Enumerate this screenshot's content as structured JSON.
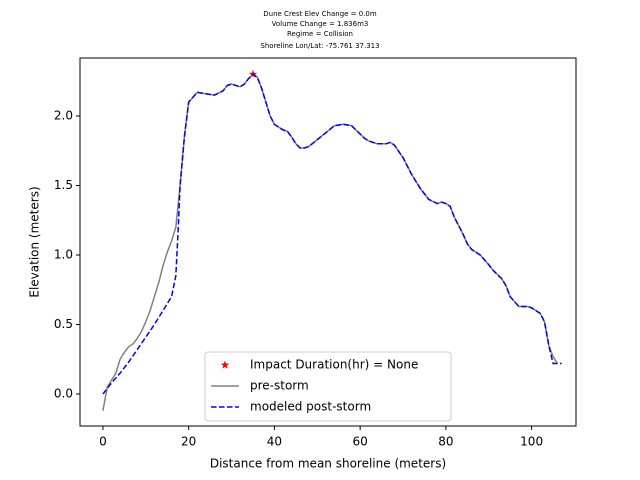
{
  "chart_data": {
    "type": "line",
    "title_lines": [
      "Dune Crest Elev Change = 0.0m",
      "Volume Change = 1.836m3",
      "Regime = Collision",
      "Shoreline Lon/Lat: -75.761 37.313"
    ],
    "x_label": "Distance from mean shoreline (meters)",
    "y_label": "Elevation (meters)",
    "xlim": [
      -5.35,
      110.35
    ],
    "ylim": [
      -0.23,
      2.417
    ],
    "xticks": [
      0,
      20,
      40,
      60,
      80,
      100
    ],
    "yticks": [
      {
        "value": 0,
        "label": "0.0"
      },
      {
        "value": 0.5,
        "label": "0.5"
      },
      {
        "value": 1,
        "label": "1.0"
      },
      {
        "value": 1.5,
        "label": "1.5"
      },
      {
        "value": 2,
        "label": "2.0"
      }
    ],
    "legend_position": "lower center",
    "series": [
      {
        "name": "Impact Duration(hr) = None",
        "color": "#ff0000",
        "marker": "star",
        "x": [
          35
        ],
        "values": [
          2.3
        ]
      },
      {
        "name": "pre-storm",
        "color": "#808080",
        "linestyle": "solid",
        "x": [
          0,
          1,
          2,
          3,
          4,
          5,
          6,
          7,
          8,
          9,
          10,
          11,
          12,
          13,
          14,
          15,
          16,
          17,
          18,
          19,
          20,
          22,
          24,
          26,
          28,
          29,
          30,
          32,
          33,
          34,
          35,
          36,
          37,
          38,
          39,
          40,
          42,
          43,
          44,
          45,
          46,
          47,
          48,
          50,
          52,
          54,
          56,
          58,
          59,
          61,
          62,
          64,
          66,
          67,
          68,
          70,
          72,
          74,
          76,
          78,
          79,
          80,
          81,
          82,
          84,
          85,
          86,
          88,
          90,
          91,
          93,
          94,
          95,
          97,
          99,
          100,
          102,
          103,
          104,
          105,
          106
        ],
        "values": [
          -0.12,
          0.05,
          0.1,
          0.15,
          0.25,
          0.3,
          0.34,
          0.36,
          0.4,
          0.45,
          0.52,
          0.6,
          0.7,
          0.8,
          0.92,
          1.02,
          1.1,
          1.2,
          1.5,
          1.85,
          2.1,
          2.17,
          2.16,
          2.15,
          2.18,
          2.22,
          2.23,
          2.21,
          2.23,
          2.27,
          2.3,
          2.28,
          2.2,
          2.1,
          2.0,
          1.94,
          1.9,
          1.89,
          1.85,
          1.8,
          1.77,
          1.77,
          1.78,
          1.83,
          1.88,
          1.93,
          1.94,
          1.93,
          1.9,
          1.84,
          1.82,
          1.8,
          1.8,
          1.81,
          1.79,
          1.7,
          1.58,
          1.48,
          1.4,
          1.37,
          1.38,
          1.37,
          1.35,
          1.27,
          1.15,
          1.08,
          1.04,
          1.0,
          0.93,
          0.89,
          0.83,
          0.78,
          0.7,
          0.63,
          0.63,
          0.62,
          0.58,
          0.52,
          0.35,
          0.27,
          0.22
        ]
      },
      {
        "name": "modeled post-storm",
        "color": "#0000ff",
        "linestyle": "dashed",
        "x": [
          0,
          2,
          4,
          6,
          8,
          10,
          12,
          14,
          16,
          17,
          17.5,
          18,
          19,
          20,
          22,
          24,
          26,
          28,
          29,
          30,
          32,
          33,
          34,
          35,
          36,
          37,
          38,
          39,
          40,
          42,
          43,
          44,
          45,
          46,
          47,
          48,
          50,
          52,
          54,
          56,
          58,
          59,
          61,
          62,
          64,
          66,
          67,
          68,
          70,
          72,
          74,
          76,
          78,
          79,
          80,
          81,
          82,
          84,
          85,
          86,
          88,
          90,
          91,
          93,
          94,
          95,
          97,
          99,
          100,
          102,
          103,
          104,
          105,
          107
        ],
        "values": [
          0,
          0.08,
          0.15,
          0.23,
          0.32,
          0.41,
          0.5,
          0.6,
          0.7,
          0.85,
          1.15,
          1.5,
          1.85,
          2.1,
          2.17,
          2.16,
          2.15,
          2.18,
          2.22,
          2.23,
          2.21,
          2.23,
          2.27,
          2.3,
          2.28,
          2.2,
          2.1,
          2.0,
          1.94,
          1.9,
          1.89,
          1.85,
          1.8,
          1.77,
          1.77,
          1.78,
          1.83,
          1.88,
          1.93,
          1.94,
          1.93,
          1.9,
          1.84,
          1.82,
          1.8,
          1.8,
          1.81,
          1.79,
          1.7,
          1.58,
          1.48,
          1.4,
          1.37,
          1.38,
          1.37,
          1.35,
          1.27,
          1.15,
          1.08,
          1.04,
          1.0,
          0.93,
          0.89,
          0.83,
          0.78,
          0.7,
          0.63,
          0.63,
          0.62,
          0.58,
          0.52,
          0.35,
          0.22,
          0.22
        ]
      }
    ]
  }
}
